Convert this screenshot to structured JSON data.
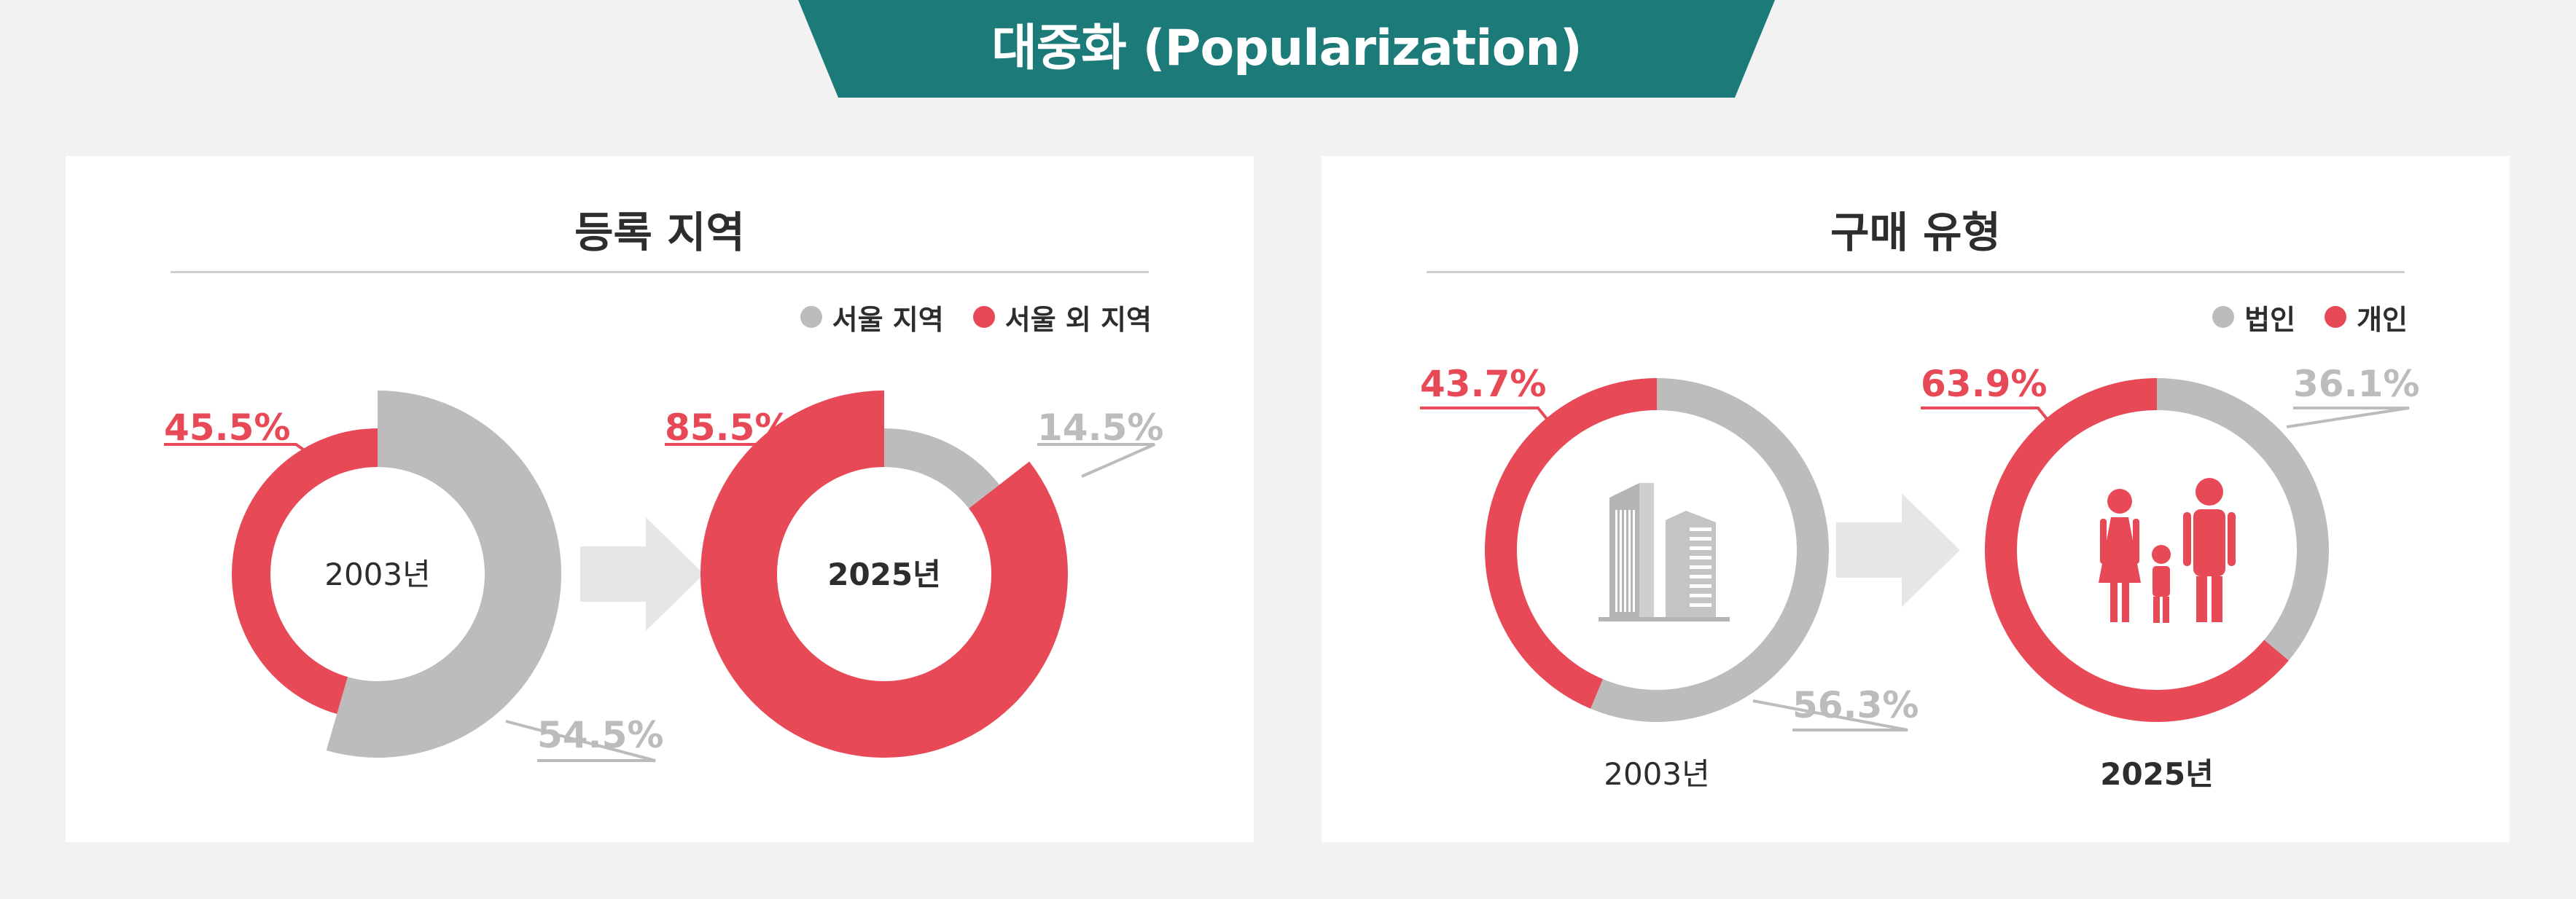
{
  "header": {
    "title": "대중화 (Popularization)"
  },
  "colors": {
    "banner": "#1c7a79",
    "red": "#e84957",
    "gray": "#bcbcbc",
    "arrow": "#e6e6e6"
  },
  "icons": [
    "building-icon",
    "family-icon",
    "arrow-right-icon"
  ],
  "chart_data": [
    {
      "type": "pie",
      "title": "등록 지역",
      "legend": [
        "서울 지역",
        "서울 외 지역"
      ],
      "legend_position": "top-right",
      "charts": [
        {
          "label": "2003년",
          "slices": [
            {
              "name": "서울 지역",
              "value": 54.5,
              "display": "54.5%"
            },
            {
              "name": "서울 외 지역",
              "value": 45.5,
              "display": "45.5%"
            }
          ]
        },
        {
          "label": "2025년",
          "slices": [
            {
              "name": "서울 지역",
              "value": 14.5,
              "display": "14.5%"
            },
            {
              "name": "서울 외 지역",
              "value": 85.5,
              "display": "85.5%"
            }
          ]
        }
      ]
    },
    {
      "type": "pie",
      "title": "구매 유형",
      "legend": [
        "법인",
        "개인"
      ],
      "legend_position": "top-right",
      "charts": [
        {
          "label": "2003년",
          "slices": [
            {
              "name": "법인",
              "value": 56.3,
              "display": "56.3%"
            },
            {
              "name": "개인",
              "value": 43.7,
              "display": "43.7%"
            }
          ]
        },
        {
          "label": "2025년",
          "slices": [
            {
              "name": "법인",
              "value": 36.1,
              "display": "36.1%"
            },
            {
              "name": "개인",
              "value": 63.9,
              "display": "63.9%"
            }
          ]
        }
      ]
    }
  ]
}
